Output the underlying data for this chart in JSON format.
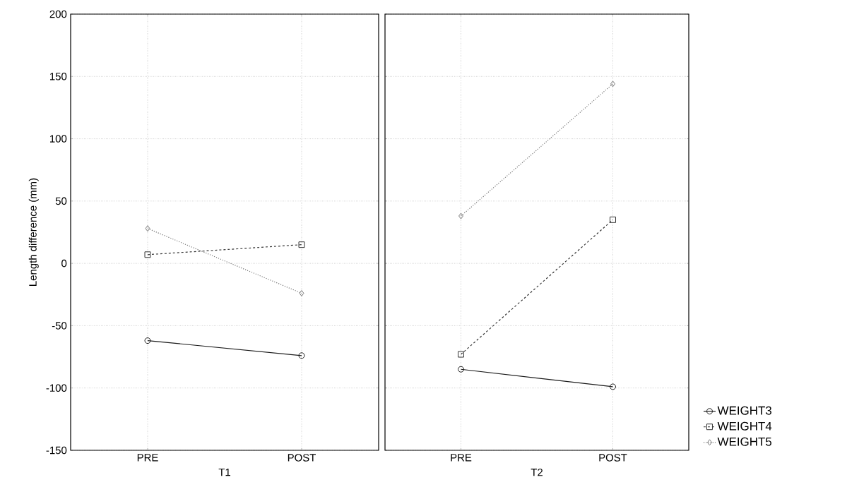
{
  "chart_data": [
    {
      "type": "line",
      "xlabel": "T1",
      "ylabel": "Length difference (mm)",
      "categories": [
        "PRE",
        "POST"
      ],
      "ylim": [
        -150,
        200
      ],
      "yticks": [
        -150,
        -100,
        -50,
        0,
        50,
        100,
        150,
        200
      ],
      "grid": true,
      "legend": false,
      "series": [
        {
          "color": "#1a1a1a",
          "values": [
            -62,
            -74
          ],
          "marker": "circle",
          "line_style": "solid"
        },
        {
          "color": "#333333",
          "values": [
            7,
            15
          ],
          "marker": "square",
          "line_style": "dashed"
        },
        {
          "color": "#777777",
          "values": [
            28,
            -24
          ],
          "marker": "diamond",
          "line_style": "dotted"
        }
      ]
    },
    {
      "type": "line",
      "xlabel": "T2",
      "categories": [
        "PRE",
        "POST"
      ],
      "ylim": [
        -150,
        200
      ],
      "yticks": [
        -150,
        -100,
        -50,
        0,
        50,
        100,
        150,
        200
      ],
      "grid": true,
      "legend": "bottom right",
      "tick_labels": "x",
      "series": [
        {
          "name": "WEIGHT3",
          "color": "#1a1a1a",
          "values": [
            -85,
            -99
          ],
          "marker": "circle",
          "line_style": "solid"
        },
        {
          "name": "WEIGHT4",
          "color": "#333333",
          "values": [
            -73,
            35
          ],
          "marker": "square",
          "line_style": "dashed"
        },
        {
          "name": "WEIGHT5",
          "color": "#777777",
          "values": [
            38,
            144
          ],
          "marker": "diamond",
          "line_style": "dotted"
        }
      ]
    }
  ]
}
